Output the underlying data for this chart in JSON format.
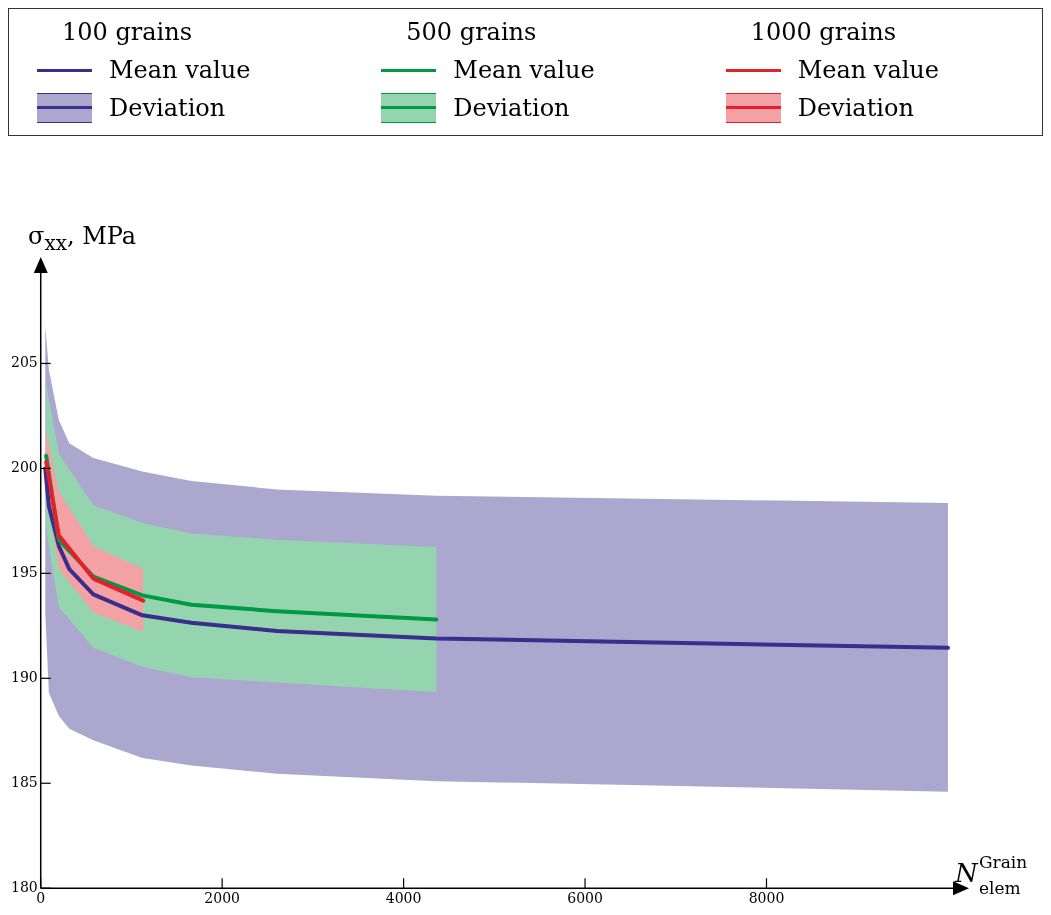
{
  "chart_data": {
    "type": "line",
    "xlabel": "N$_{elem}$$^{Grain}$",
    "ylabel": "σ$_{xx}$, MPa",
    "legend": "top",
    "grid": false,
    "xlim": [
      0,
      10100
    ],
    "ylim": [
      180,
      209.5
    ],
    "xticks": [
      0,
      2000,
      4000,
      6000,
      8000
    ],
    "yticks": [
      180,
      185,
      190,
      195,
      200,
      205
    ],
    "annotations": [
      "100 grains",
      "Deviation",
      "500 grains",
      "Deviation",
      "1000 grains",
      "Deviation"
    ],
    "series": [
      {
        "name": "Mean value",
        "color": "#3a2d8c",
        "x": [
          50,
          90,
          200,
          315,
          580,
          1120,
          1660,
          2600,
          4360,
          10000
        ],
        "values": [
          200.0,
          198.2,
          196.3,
          195.2,
          194.0,
          193.0,
          192.65,
          192.25,
          191.9,
          191.45
        ],
        "lower": [
          193.1,
          189.3,
          188.2,
          187.6,
          187.05,
          186.2,
          185.85,
          185.45,
          185.1,
          184.6
        ],
        "upper": [
          206.8,
          204.7,
          202.3,
          201.2,
          200.5,
          199.85,
          199.4,
          199.0,
          198.7,
          198.35
        ]
      },
      {
        "name": "Mean value",
        "color": "#009a44",
        "x": [
          60,
          200,
          580,
          1120,
          1660,
          2600,
          4360
        ],
        "values": [
          200.6,
          196.6,
          194.85,
          193.95,
          193.5,
          193.2,
          192.8
        ],
        "lower": [
          197.1,
          193.4,
          191.45,
          190.55,
          190.05,
          189.8,
          189.35
        ],
        "upper": [
          204.0,
          200.7,
          198.25,
          197.4,
          196.9,
          196.6,
          196.25
        ]
      },
      {
        "name": "Mean value",
        "color": "#e4202a",
        "x": [
          60,
          200,
          580,
          1130
        ],
        "values": [
          200.3,
          196.8,
          194.75,
          193.7
        ],
        "lower": [
          198.9,
          195.2,
          193.15,
          192.2
        ],
        "upper": [
          201.8,
          198.9,
          196.3,
          195.2
        ]
      }
    ]
  }
}
